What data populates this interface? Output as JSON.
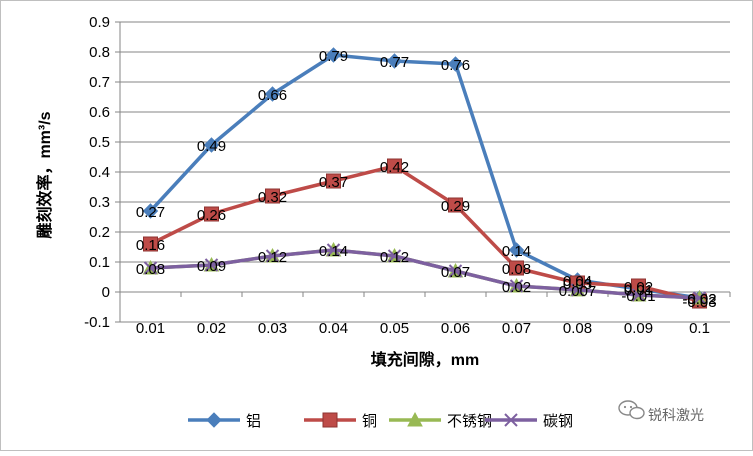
{
  "chart_data": {
    "type": "line",
    "categories": [
      "0.01",
      "0.02",
      "0.03",
      "0.04",
      "0.05",
      "0.06",
      "0.07",
      "0.08",
      "0.09",
      "0.1"
    ],
    "ylim": [
      -0.1,
      0.9
    ],
    "yticks": [
      "-0.1",
      "0",
      "0.1",
      "0.2",
      "0.3",
      "0.4",
      "0.5",
      "0.6",
      "0.7",
      "0.8",
      "0.9"
    ],
    "xlabel": "填充间隙，mm",
    "ylabel": "雕刻效率，mm³/s",
    "grid": "horizontal",
    "legend_position": "bottom",
    "series": [
      {
        "name": "铝",
        "color": "#4a7ebb",
        "marker": "diamond",
        "values": [
          0.27,
          0.49,
          0.66,
          0.79,
          0.77,
          0.76,
          0.14,
          0.04,
          0.01,
          -0.02
        ],
        "labels": [
          "0.27",
          "0.49",
          "0.66",
          "0.79",
          "0.77",
          "0.76",
          "0.14",
          "0.04",
          "0.01",
          "-0.02"
        ]
      },
      {
        "name": "铜",
        "color": "#be4b48",
        "marker": "square",
        "values": [
          0.16,
          0.26,
          0.32,
          0.37,
          0.42,
          0.29,
          0.08,
          0.03,
          0.02,
          -0.03
        ],
        "labels": [
          "0.16",
          "0.26",
          "0.32",
          "0.37",
          "0.42",
          "0.29",
          "0.08",
          "0.03",
          "0.02",
          "-0.03"
        ]
      },
      {
        "name": "不锈钢",
        "color": "#98b954",
        "marker": "triangle",
        "values": [
          0.08,
          0.09,
          0.12,
          0.14,
          0.12,
          0.07,
          0.02,
          0.007,
          -0.01,
          -0.02
        ],
        "labels": [
          "",
          "",
          "",
          "",
          "",
          "",
          "",
          "",
          "",
          ""
        ]
      },
      {
        "name": "碳钢",
        "color": "#7d60a0",
        "marker": "x",
        "values": [
          0.08,
          0.09,
          0.12,
          0.14,
          0.12,
          0.07,
          0.02,
          0.007,
          -0.01,
          -0.02
        ],
        "labels": [
          "0.08",
          "0.09",
          "0.12",
          "0.14",
          "0.12",
          "0.07",
          "0.02",
          "0.007",
          "-0.01",
          "-0.02"
        ]
      }
    ]
  },
  "watermark": {
    "text": "锐科激光",
    "icon": "wechat-icon"
  }
}
